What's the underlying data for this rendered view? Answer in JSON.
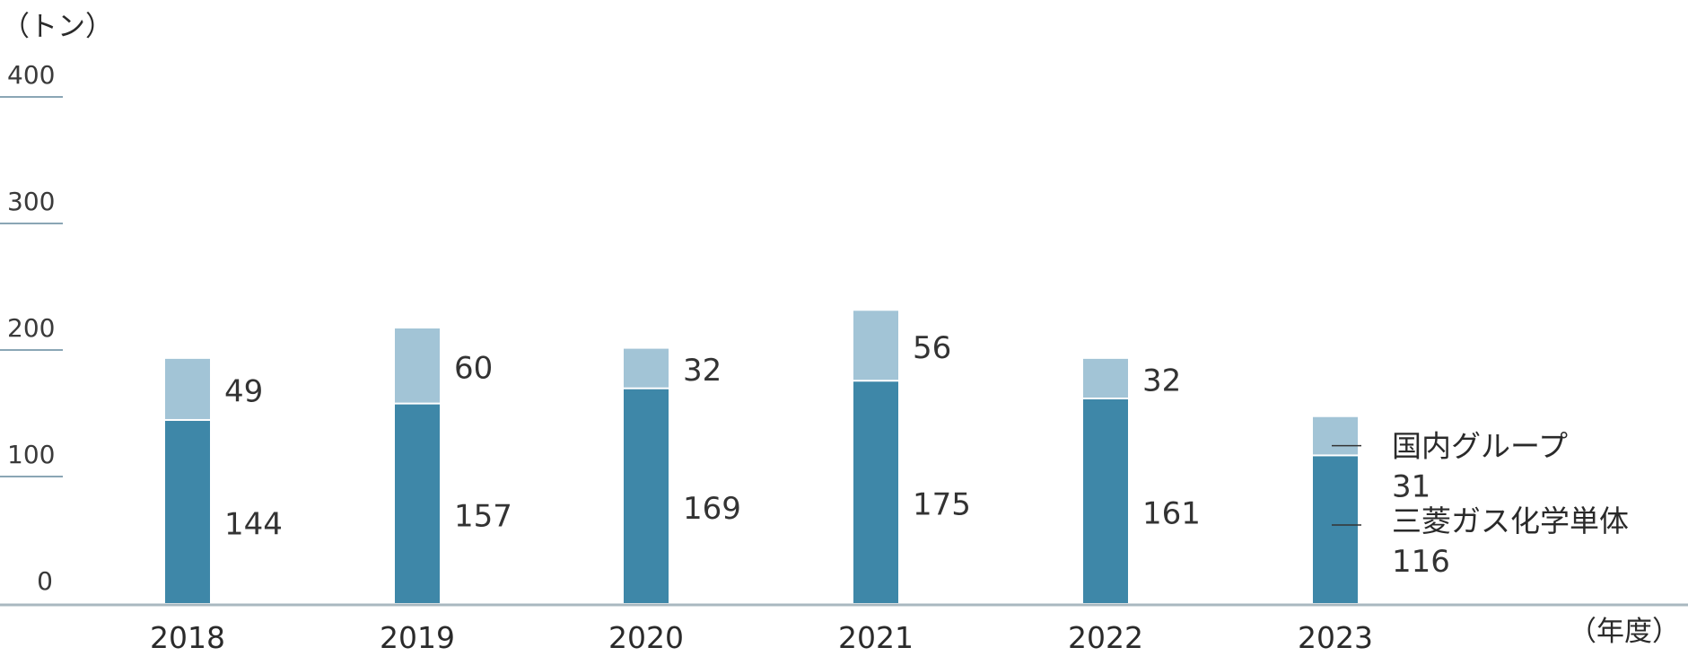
{
  "chart_data": {
    "type": "bar",
    "stacked": true,
    "y_unit_label": "（トン）",
    "x_unit_label": "（年度）",
    "categories": [
      "2018",
      "2019",
      "2020",
      "2021",
      "2022",
      "2023"
    ],
    "ylim": [
      0,
      400
    ],
    "yticks": [
      0,
      100,
      200,
      300,
      400
    ],
    "series": [
      {
        "name": "三菱ガス化学単体",
        "values": [
          144,
          157,
          169,
          175,
          161,
          116
        ],
        "color": "#3e87a8"
      },
      {
        "name": "国内グループ",
        "values": [
          49,
          60,
          32,
          56,
          32,
          31
        ],
        "color": "#a2c4d6"
      }
    ],
    "legend_position": "right of last bar",
    "grid": false
  }
}
